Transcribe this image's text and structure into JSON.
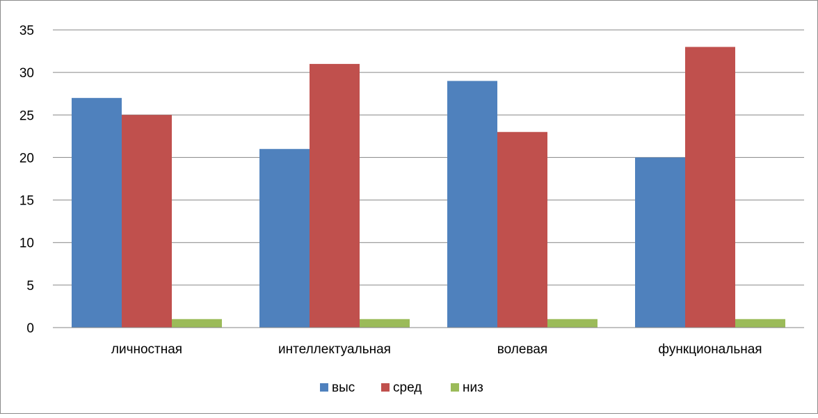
{
  "chart_data": {
    "type": "bar",
    "categories": [
      "личностная",
      "интеллектуальная",
      "волевая",
      "функциональная"
    ],
    "series": [
      {
        "name": "выс",
        "values": [
          27,
          21,
          29,
          20
        ],
        "color": "#4F81BD"
      },
      {
        "name": "сред",
        "values": [
          25,
          31,
          23,
          33
        ],
        "color": "#C0504D"
      },
      {
        "name": "низ",
        "values": [
          1,
          1,
          1,
          1
        ],
        "color": "#9BBB59"
      }
    ],
    "ylim": [
      0,
      35
    ],
    "yticks": [
      "0",
      "5",
      "10",
      "15",
      "20",
      "25",
      "30",
      "35"
    ],
    "grid": true,
    "legend": "bottom"
  }
}
